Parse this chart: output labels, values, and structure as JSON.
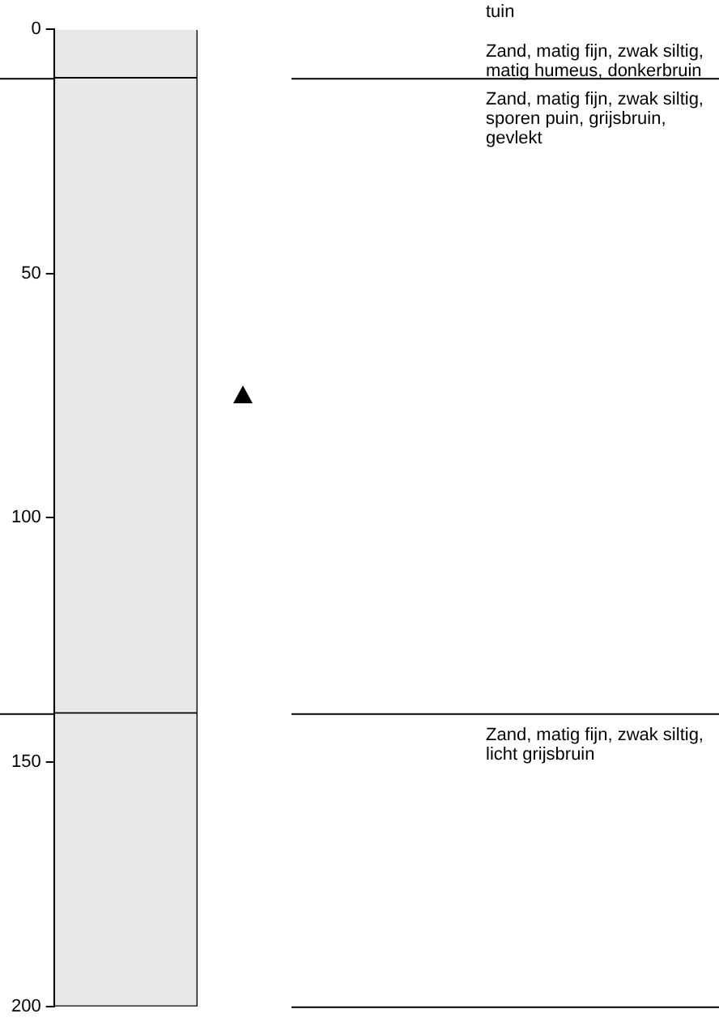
{
  "chart_data": {
    "type": "bar",
    "stacked": true,
    "categories": [
      null
    ],
    "ylim": [
      200,
      0
    ],
    "yticks": [
      0,
      50,
      100,
      150,
      200
    ],
    "legend": false,
    "annotations": [
      "tuin"
    ],
    "series": [
      {
        "name": "Zand, matig fijn, zwak siltig, matig humeus, donkerbruin",
        "color": "#e8e8e8",
        "values": [
          10
        ]
      },
      {
        "name": "Zand, matig fijn, zwak siltig, sporen puin, grijsbruin, gevlekt",
        "color": "#e8e8e8",
        "values": [
          130
        ]
      },
      {
        "name": "Zand, matig fijn, zwak siltig, licht grijsbruin",
        "color": "#e8e8e8",
        "values": [
          60
        ]
      }
    ]
  }
}
